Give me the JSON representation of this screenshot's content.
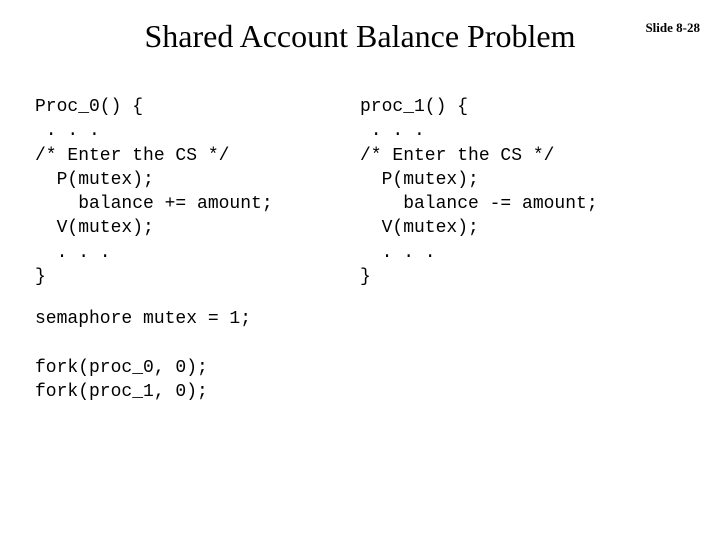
{
  "slide_number": "Slide 8-28",
  "title": "Shared Account Balance Problem",
  "proc0": {
    "line1": "Proc_0() {",
    "line2": " . . .",
    "line3": "/* Enter the CS */",
    "line4": "  P(mutex);",
    "line5": "    balance += amount;",
    "line6": "  V(mutex);",
    "line7": "  . . .",
    "line8": "}"
  },
  "proc1": {
    "line1": "proc_1() {",
    "line2": " . . .",
    "line3": "/* Enter the CS */",
    "line4": "  P(mutex);",
    "line5": "    balance -= amount;",
    "line6": "  V(mutex);",
    "line7": "  . . .",
    "line8": "}"
  },
  "bottom": {
    "line1": "semaphore mutex = 1;",
    "line2": "",
    "line3": "fork(proc_0, 0);",
    "line4": "fork(proc_1, 0);"
  }
}
